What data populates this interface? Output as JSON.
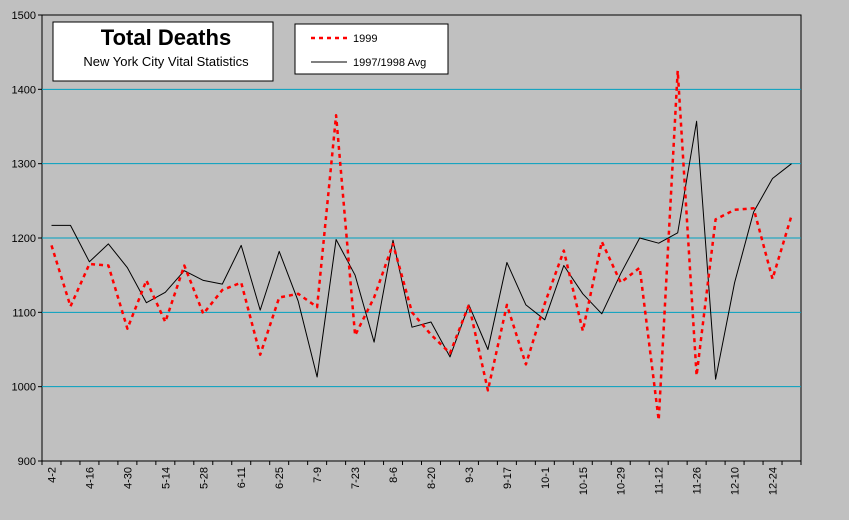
{
  "chart_data": {
    "type": "line",
    "title": "Total Deaths",
    "subtitle": "New York City Vital Statistics",
    "ylim": [
      900,
      1500
    ],
    "yticks": [
      900,
      1000,
      1100,
      1200,
      1300,
      1400,
      1500
    ],
    "grid": true,
    "legend_position": "top-center",
    "x": [
      "4-2",
      "4-9",
      "4-16",
      "4-23",
      "4-30",
      "5-7",
      "5-14",
      "5-21",
      "5-28",
      "6-4",
      "6-11",
      "6-18",
      "6-25",
      "7-2",
      "7-9",
      "7-16",
      "7-23",
      "7-30",
      "8-6",
      "8-13",
      "8-20",
      "8-27",
      "9-3",
      "9-10",
      "9-17",
      "9-24",
      "10-1",
      "10-8",
      "10-15",
      "10-22",
      "10-29",
      "11-5",
      "11-12",
      "11-19",
      "11-26",
      "12-3",
      "12-10",
      "12-17",
      "12-24",
      "12-31"
    ],
    "xtick_labels": [
      "4-2",
      "4-16",
      "4-30",
      "5-14",
      "5-28",
      "6-11",
      "6-25",
      "7-9",
      "7-23",
      "8-6",
      "8-20",
      "9-3",
      "9-17",
      "10-1",
      "10-15",
      "10-29",
      "11-12",
      "11-26",
      "12-10",
      "12-24"
    ],
    "series": [
      {
        "name": "1999",
        "color": "#ff0000",
        "style": "dashed",
        "values": [
          1190,
          1108,
          1165,
          1163,
          1078,
          1143,
          1087,
          1163,
          1098,
          1130,
          1140,
          1043,
          1120,
          1125,
          1107,
          1365,
          1069,
          1120,
          1192,
          1100,
          1070,
          1045,
          1110,
          995,
          1110,
          1030,
          1112,
          1183,
          1075,
          1195,
          1140,
          1160,
          955,
          1425,
          1015,
          1225,
          1238,
          1240,
          1145,
          1230
        ]
      },
      {
        "name": "1997/1998 Avg",
        "color": "#000000",
        "style": "solid",
        "values": [
          1217,
          1217,
          1168,
          1192,
          1160,
          1113,
          1127,
          1156,
          1143,
          1138,
          1190,
          1103,
          1182,
          1115,
          1013,
          1198,
          1150,
          1060,
          1197,
          1080,
          1087,
          1040,
          1110,
          1050,
          1167,
          1110,
          1090,
          1163,
          1125,
          1098,
          1152,
          1200,
          1193,
          1207,
          1357,
          1010,
          1140,
          1235,
          1280,
          1300
        ]
      }
    ]
  }
}
